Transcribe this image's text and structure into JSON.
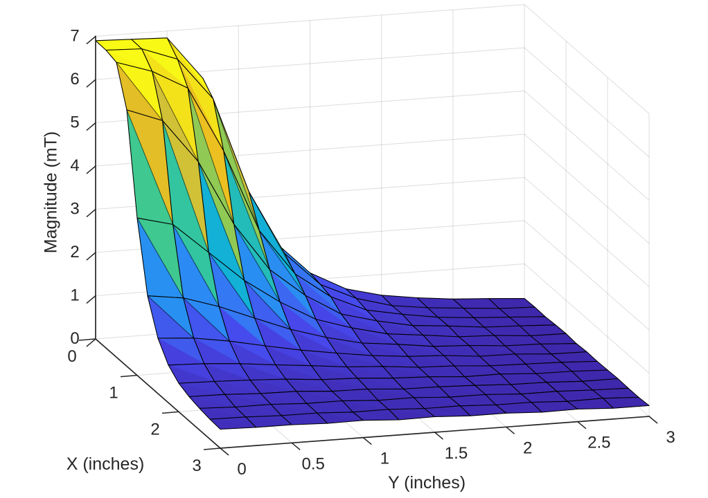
{
  "figure": {
    "background": "#ffffff",
    "text_color": "#262626",
    "grid_color": "#262626",
    "grid_alpha": 0.16
  },
  "chart_data": {
    "type": "surface",
    "title": "",
    "xlabel": "X (inches)",
    "ylabel": "Y (inches)",
    "zlabel": "Magnitude (mT)",
    "xlim": [
      0,
      3
    ],
    "ylim": [
      0,
      3
    ],
    "zlim": [
      0,
      7
    ],
    "grid": true,
    "legend": false,
    "colormap": "parula",
    "colormap_stops": [
      [
        0.0,
        62,
        38,
        168
      ],
      [
        0.125,
        71,
        71,
        235
      ],
      [
        0.25,
        46,
        135,
        247
      ],
      [
        0.375,
        18,
        177,
        214
      ],
      [
        0.5,
        55,
        200,
        151
      ],
      [
        0.625,
        129,
        204,
        89
      ],
      [
        0.75,
        187,
        196,
        73
      ],
      [
        0.875,
        234,
        189,
        32
      ],
      [
        1.0,
        249,
        251,
        21
      ]
    ],
    "edge_color": "#000000",
    "xticks": {
      "values": [
        0,
        1,
        2,
        3
      ],
      "labels": [
        "0",
        "1",
        "2",
        "3"
      ]
    },
    "yticks": {
      "values": [
        0,
        0.5,
        1,
        1.5,
        2,
        2.5,
        3
      ],
      "labels": [
        "0",
        "0.5",
        "1",
        "1.5",
        "2",
        "2.5",
        "3"
      ]
    },
    "zticks": {
      "values": [
        0,
        1,
        2,
        3,
        4,
        5,
        6,
        7
      ],
      "labels": [
        "0",
        "1",
        "2",
        "3",
        "4",
        "5",
        "6",
        "7"
      ]
    },
    "x": [
      0,
      0.25,
      0.5,
      0.75,
      1,
      1.25,
      1.5,
      1.75,
      2,
      2.25,
      2.5,
      2.75,
      3
    ],
    "y": [
      0,
      0.25,
      0.5,
      0.75,
      1,
      1.25,
      1.5,
      1.75,
      2,
      2.25,
      2.5,
      2.75,
      3
    ],
    "z_units": "mT",
    "z": [
      [
        6.9,
        6.87,
        6.84,
        5.85,
        3.56,
        1.95,
        1.16,
        0.73,
        0.52,
        0.4,
        0.31,
        0.26,
        0.2
      ],
      [
        6.89,
        6.86,
        6.56,
        5.58,
        3.37,
        1.88,
        1.1,
        0.72,
        0.49,
        0.38,
        0.31,
        0.24,
        0.21
      ],
      [
        6.82,
        6.55,
        6.1,
        4.59,
        2.68,
        1.62,
        1.03,
        0.66,
        0.5,
        0.37,
        0.3,
        0.25,
        0.2
      ],
      [
        5.93,
        5.62,
        4.61,
        3.1,
        1.99,
        1.33,
        0.84,
        0.62,
        0.45,
        0.38,
        0.29,
        0.26,
        0.22
      ],
      [
        3.64,
        3.43,
        2.72,
        2.01,
        1.45,
        0.99,
        0.73,
        0.53,
        0.44,
        0.34,
        0.31,
        0.24,
        0.23
      ],
      [
        2.05,
        1.94,
        1.68,
        1.35,
        1.03,
        0.78,
        0.59,
        0.5,
        0.39,
        0.35,
        0.28,
        0.26,
        0.21
      ],
      [
        1.28,
        1.22,
        1.09,
        0.92,
        0.76,
        0.63,
        0.51,
        0.43,
        0.39,
        0.31,
        0.3,
        0.24,
        0.23
      ],
      [
        0.87,
        0.84,
        0.78,
        0.69,
        0.61,
        0.52,
        0.47,
        0.39,
        0.36,
        0.3,
        0.28,
        0.26,
        0.22
      ],
      [
        0.66,
        0.64,
        0.61,
        0.57,
        0.5,
        0.47,
        0.41,
        0.38,
        0.32,
        0.32,
        0.27,
        0.26,
        0.23
      ],
      [
        0.56,
        0.55,
        0.51,
        0.5,
        0.44,
        0.43,
        0.37,
        0.36,
        0.33,
        0.29,
        0.28,
        0.24,
        0.24
      ],
      [
        0.5,
        0.47,
        0.47,
        0.43,
        0.43,
        0.38,
        0.38,
        0.33,
        0.33,
        0.28,
        0.28,
        0.25,
        0.23
      ],
      [
        0.46,
        0.45,
        0.42,
        0.42,
        0.38,
        0.38,
        0.34,
        0.34,
        0.3,
        0.3,
        0.26,
        0.27,
        0.23
      ],
      [
        0.44,
        0.42,
        0.42,
        0.39,
        0.4,
        0.35,
        0.36,
        0.32,
        0.32,
        0.28,
        0.29,
        0.25,
        0.25
      ]
    ]
  }
}
